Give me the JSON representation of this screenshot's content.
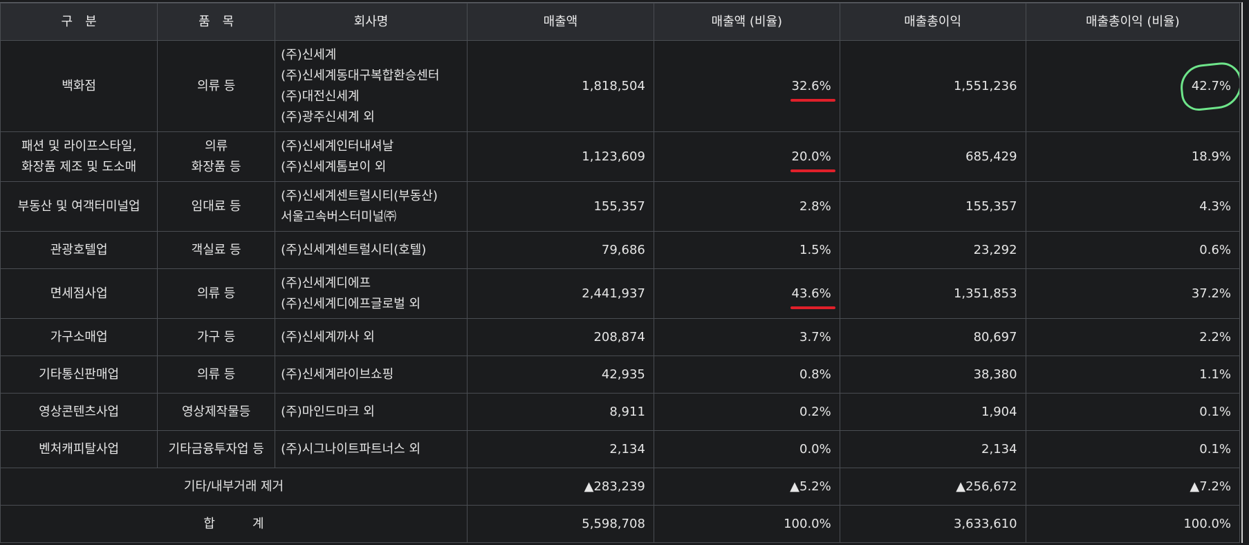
{
  "headers": [
    "구　분",
    "품　목",
    "회사명",
    "매출액",
    "매출액 (비율)",
    "매출총이익",
    "매출총이익 (비율)"
  ],
  "rows": [
    {
      "category": "백화점",
      "items": [
        "의류 등"
      ],
      "companies": [
        "(주)신세계",
        "(주)신세계동대구복합환승센터",
        "(주)대전신세계",
        "(주)광주신세계 외"
      ],
      "sales": "1,818,504",
      "sales_ratio": "32.6%",
      "gross_profit": "1,551,236",
      "gp_ratio": "42.7%"
    },
    {
      "category_lines": [
        "패션 및 라이프스타일,",
        "화장품 제조 및 도소매"
      ],
      "items": [
        "의류",
        "화장품 등"
      ],
      "companies": [
        "(주)신세계인터내셔날",
        "(주)신세계톰보이 외"
      ],
      "sales": "1,123,609",
      "sales_ratio": "20.0%",
      "gross_profit": "685,429",
      "gp_ratio": "18.9%"
    },
    {
      "category": "부동산 및 여객터미널업",
      "items": [
        "임대료 등"
      ],
      "companies": [
        "(주)신세계센트럴시티(부동산)",
        "서울고속버스터미널㈜"
      ],
      "sales": "155,357",
      "sales_ratio": "2.8%",
      "gross_profit": "155,357",
      "gp_ratio": "4.3%"
    },
    {
      "category": "관광호텔업",
      "items": [
        "객실료 등"
      ],
      "companies": [
        "(주)신세계센트럴시티(호텔)"
      ],
      "sales": "79,686",
      "sales_ratio": "1.5%",
      "gross_profit": "23,292",
      "gp_ratio": "0.6%"
    },
    {
      "category": "면세점사업",
      "items": [
        "의류 등"
      ],
      "companies": [
        "(주)신세계디에프",
        "(주)신세계디에프글로벌 외"
      ],
      "sales": "2,441,937",
      "sales_ratio": "43.6%",
      "gross_profit": "1,351,853",
      "gp_ratio": "37.2%"
    },
    {
      "category": "가구소매업",
      "items": [
        "가구 등"
      ],
      "companies": [
        "(주)신세계까사 외"
      ],
      "sales": "208,874",
      "sales_ratio": "3.7%",
      "gross_profit": "80,697",
      "gp_ratio": "2.2%"
    },
    {
      "category": "기타통신판매업",
      "items": [
        "의류 등"
      ],
      "companies": [
        "(주)신세계라이브쇼핑"
      ],
      "sales": "42,935",
      "sales_ratio": "0.8%",
      "gross_profit": "38,380",
      "gp_ratio": "1.1%"
    },
    {
      "category": "영상콘텐츠사업",
      "items": [
        "영상제작물등"
      ],
      "companies": [
        "(주)마인드마크 외"
      ],
      "sales": "8,911",
      "sales_ratio": "0.2%",
      "gross_profit": "1,904",
      "gp_ratio": "0.1%"
    },
    {
      "category": "벤처캐피탈사업",
      "items": [
        "기타금융투자업 등"
      ],
      "companies": [
        "(주)시그나이트파트너스 외"
      ],
      "sales": "2,134",
      "sales_ratio": "0.0%",
      "gross_profit": "2,134",
      "gp_ratio": "0.1%"
    }
  ],
  "adjustment": {
    "label": "기타/내부거래 제거",
    "sales": "▲283,239",
    "sales_ratio": "▲5.2%",
    "gross_profit": "▲256,672",
    "gp_ratio": "▲7.2%"
  },
  "total": {
    "label": "합　　　계",
    "sales": "5,598,708",
    "sales_ratio": "100.0%",
    "gross_profit": "3,633,610",
    "gp_ratio": "100.0%"
  },
  "annotation_colors": {
    "underline": "#e0202a",
    "circle": "#6ee58a"
  }
}
